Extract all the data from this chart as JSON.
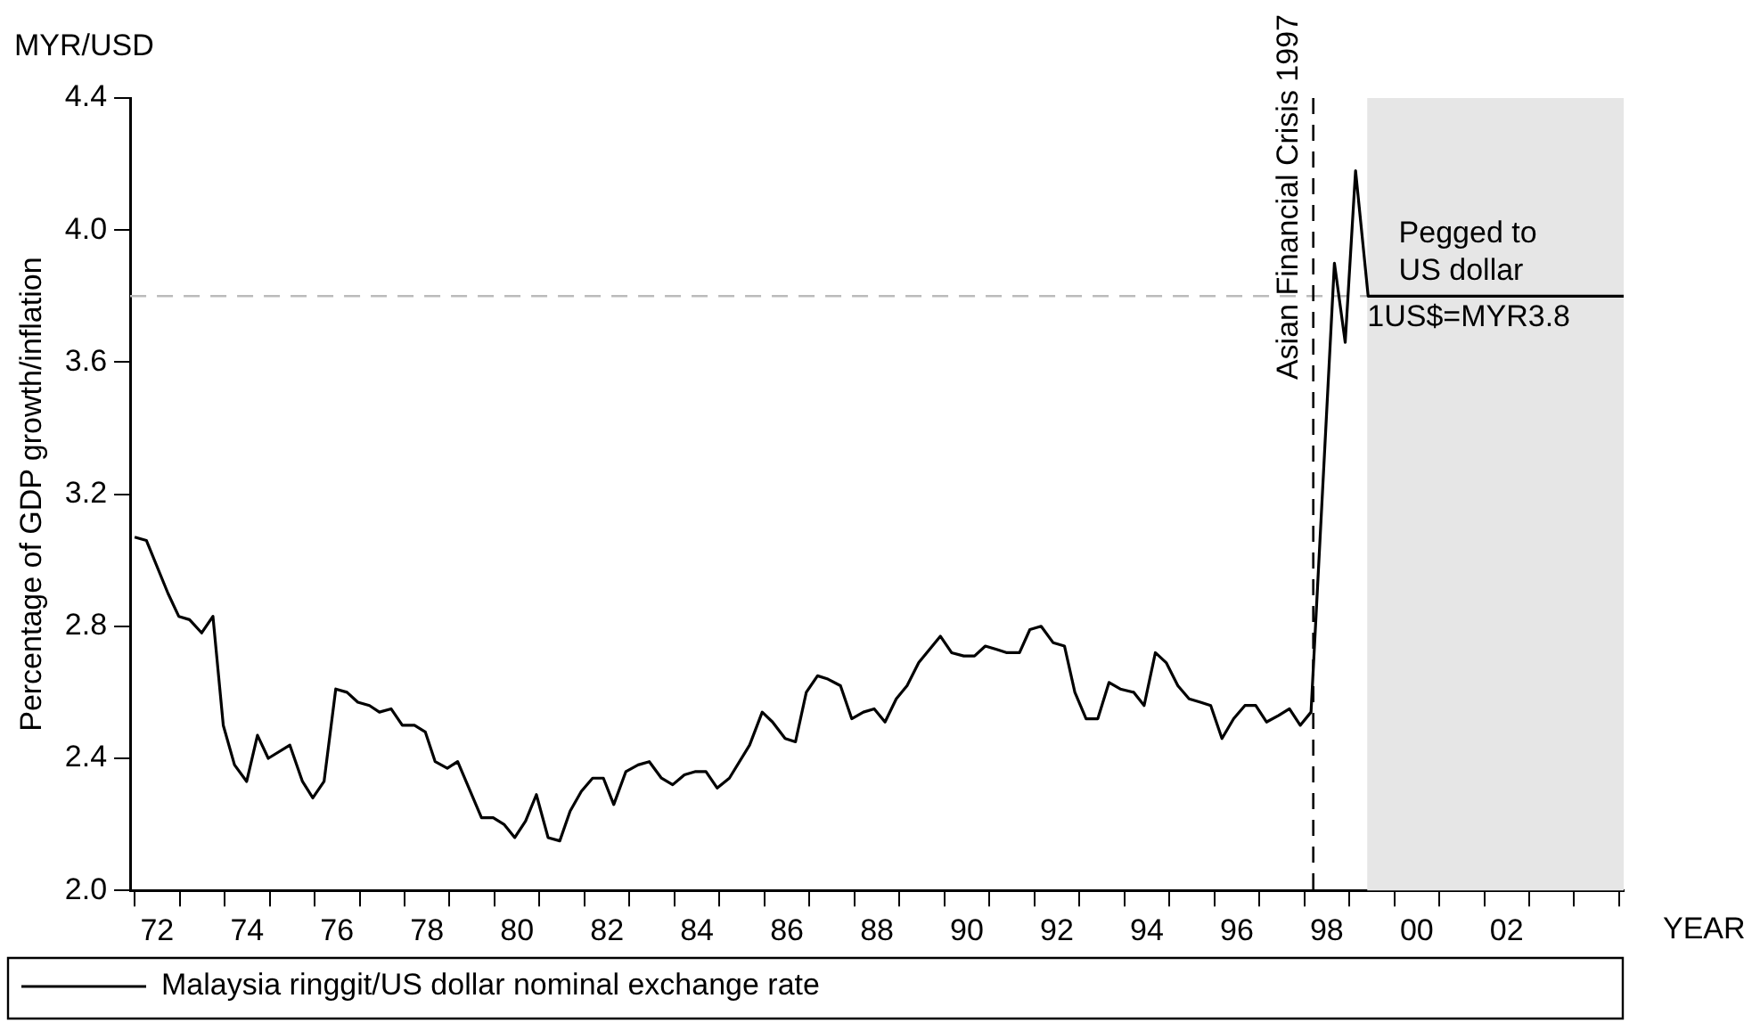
{
  "chart_data": {
    "type": "line",
    "xlabel": "YEAR",
    "ylabel": "Percentage of GDP growth/inflation",
    "annotations": [
      "MYR/USD",
      {
        "text": "Pegged to US dollar",
        "x": 1999.6,
        "y": 3.83
      },
      {
        "text": "1US$=MYR3.8",
        "x": 1998.9,
        "y": 3.78
      }
    ],
    "series": [
      {
        "name": "Malaysia ringgit/US dollar nominal exchange rate",
        "color": "#000000",
        "x": [
          1971.5,
          1971.76,
          1972.24,
          1972.48,
          1972.72,
          1972.99,
          1973.24,
          1973.47,
          1973.72,
          1973.99,
          1974.23,
          1974.47,
          1974.95,
          1975.23,
          1975.46,
          1975.71,
          1975.97,
          1976.22,
          1976.46,
          1976.72,
          1976.94,
          1977.2,
          1977.45,
          1977.72,
          1977.96,
          1978.18,
          1978.45,
          1978.68,
          1979.21,
          1979.47,
          1979.71,
          1979.95,
          1980.19,
          1980.43,
          1980.69,
          1980.95,
          1981.18,
          1981.43,
          1981.68,
          1981.92,
          1982.15,
          1982.42,
          1982.69,
          1982.94,
          1983.21,
          1983.46,
          1983.72,
          1983.97,
          1984.2,
          1984.45,
          1984.72,
          1985.17,
          1985.45,
          1985.68,
          1985.96,
          1986.19,
          1986.43,
          1986.68,
          1986.91,
          1987.19,
          1987.44,
          1987.7,
          1987.94,
          1988.18,
          1988.43,
          1988.67,
          1988.93,
          1989.41,
          1989.66,
          1989.93,
          1990.17,
          1990.41,
          1990.66,
          1990.89,
          1991.17,
          1991.4,
          1991.65,
          1991.92,
          1992.17,
          1992.4,
          1992.65,
          1992.91,
          1993.16,
          1993.41,
          1993.71,
          1993.94,
          1994.19,
          1994.43,
          1994.69,
          1994.94,
          1995.19,
          1995.42,
          1995.67,
          1995.93,
          1996.18,
          1996.42,
          1996.66,
          1996.93,
          1997.17,
          1997.41,
          1997.65,
          1998.17,
          1998.41,
          1998.64,
          1998.92,
          2004.6
        ],
        "values": [
          3.07,
          3.06,
          2.9,
          2.83,
          2.82,
          2.78,
          2.83,
          2.5,
          2.38,
          2.33,
          2.47,
          2.4,
          2.44,
          2.33,
          2.28,
          2.33,
          2.61,
          2.6,
          2.57,
          2.56,
          2.54,
          2.55,
          2.5,
          2.5,
          2.48,
          2.39,
          2.37,
          2.39,
          2.22,
          2.22,
          2.2,
          2.16,
          2.21,
          2.29,
          2.16,
          2.15,
          2.24,
          2.3,
          2.34,
          2.34,
          2.26,
          2.36,
          2.38,
          2.39,
          2.34,
          2.32,
          2.35,
          2.36,
          2.36,
          2.31,
          2.34,
          2.44,
          2.54,
          2.51,
          2.46,
          2.45,
          2.6,
          2.65,
          2.64,
          2.62,
          2.52,
          2.54,
          2.55,
          2.51,
          2.58,
          2.62,
          2.69,
          2.77,
          2.72,
          2.71,
          2.71,
          2.74,
          2.73,
          2.72,
          2.72,
          2.79,
          2.8,
          2.75,
          2.74,
          2.6,
          2.52,
          2.52,
          2.63,
          2.61,
          2.6,
          2.56,
          2.72,
          2.69,
          2.62,
          2.58,
          2.57,
          2.56,
          2.46,
          2.52,
          2.56,
          2.56,
          2.51,
          2.53,
          2.55,
          2.5,
          2.54,
          3.9,
          3.66,
          4.18,
          3.8,
          3.8
        ]
      }
    ],
    "xlim": [
      1971.4,
      2004.6
    ],
    "xticks": [
      {
        "value": 1971.5,
        "label": null
      },
      {
        "value": 1972,
        "label": "72"
      },
      {
        "value": 1972.5,
        "label": null
      },
      {
        "value": 1973.5,
        "label": null
      },
      {
        "value": 1974,
        "label": "74"
      },
      {
        "value": 1974.5,
        "label": null
      },
      {
        "value": 1975.5,
        "label": null
      },
      {
        "value": 1976,
        "label": "76"
      },
      {
        "value": 1976.5,
        "label": null
      },
      {
        "value": 1977.5,
        "label": null
      },
      {
        "value": 1978,
        "label": "78"
      },
      {
        "value": 1978.5,
        "label": null
      },
      {
        "value": 1979.5,
        "label": null
      },
      {
        "value": 1980,
        "label": "80"
      },
      {
        "value": 1980.5,
        "label": null
      },
      {
        "value": 1981.5,
        "label": null
      },
      {
        "value": 1982,
        "label": "82"
      },
      {
        "value": 1982.5,
        "label": null
      },
      {
        "value": 1983.5,
        "label": null
      },
      {
        "value": 1984,
        "label": "84"
      },
      {
        "value": 1984.5,
        "label": null
      },
      {
        "value": 1985.5,
        "label": null
      },
      {
        "value": 1986,
        "label": "86"
      },
      {
        "value": 1986.5,
        "label": null
      },
      {
        "value": 1987.5,
        "label": null
      },
      {
        "value": 1988,
        "label": "88"
      },
      {
        "value": 1988.5,
        "label": null
      },
      {
        "value": 1989.5,
        "label": null
      },
      {
        "value": 1990,
        "label": "90"
      },
      {
        "value": 1990.5,
        "label": null
      },
      {
        "value": 1991.5,
        "label": null
      },
      {
        "value": 1992,
        "label": "92"
      },
      {
        "value": 1992.5,
        "label": null
      },
      {
        "value": 1993.5,
        "label": null
      },
      {
        "value": 1994,
        "label": "94"
      },
      {
        "value": 1994.5,
        "label": null
      },
      {
        "value": 1995.5,
        "label": null
      },
      {
        "value": 1996,
        "label": "96"
      },
      {
        "value": 1996.5,
        "label": null
      },
      {
        "value": 1997.5,
        "label": null
      },
      {
        "value": 1998,
        "label": "98"
      },
      {
        "value": 1998.5,
        "label": null
      },
      {
        "value": 1999.5,
        "label": null
      },
      {
        "value": 2000,
        "label": "00"
      },
      {
        "value": 2000.5,
        "label": null
      },
      {
        "value": 2001.5,
        "label": null
      },
      {
        "value": 2002,
        "label": "02"
      },
      {
        "value": 2002.5,
        "label": null
      },
      {
        "value": 2003.5,
        "label": null
      },
      {
        "value": 2004.5,
        "label": null
      }
    ],
    "ylim": [
      2.0,
      4.4
    ],
    "yticks": [
      {
        "value": 2.0,
        "label": "2.0"
      },
      {
        "value": 2.4,
        "label": "2.4"
      },
      {
        "value": 2.8,
        "label": "2.8"
      },
      {
        "value": 3.2,
        "label": "3.2"
      },
      {
        "value": 3.6,
        "label": "3.6"
      },
      {
        "value": 4.0,
        "label": "4.0"
      },
      {
        "value": 4.4,
        "label": "4.4"
      }
    ],
    "ref_lines": [
      {
        "axis": "y",
        "value": 3.8,
        "color": "#bbbbbb",
        "line_style": "dashed"
      },
      {
        "axis": "x",
        "value": 1997.7,
        "label": "Asian Financial Crisis 1997",
        "color": "#000000",
        "line_style": "dashed"
      }
    ],
    "bands": [
      {
        "axis": "x",
        "from": 1998.9,
        "to": 2004.6,
        "color": "#e6e6e6"
      }
    ],
    "grid": false,
    "legend": "bottom left",
    "marker": "none",
    "line_style": "solid"
  }
}
